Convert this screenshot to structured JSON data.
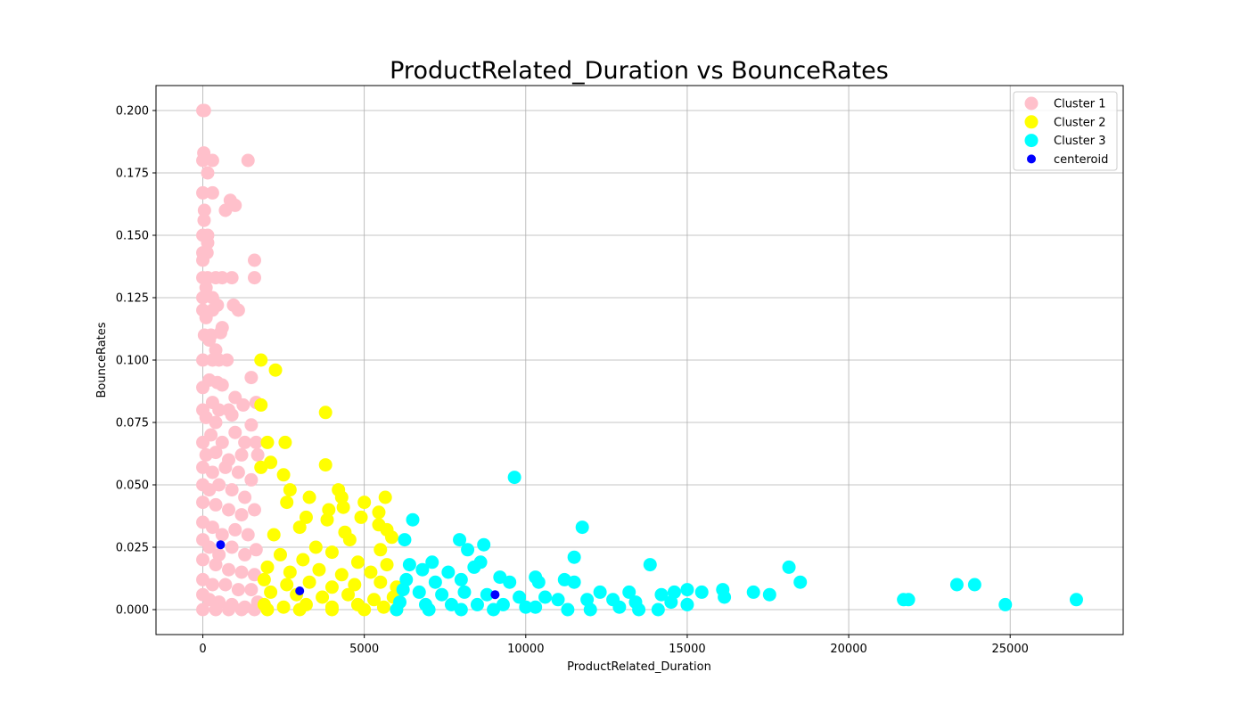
{
  "chart_data": {
    "type": "scatter",
    "title": "ProductRelated_Duration vs BounceRates",
    "xlabel": "ProductRelated_Duration",
    "ylabel": "BounceRates",
    "xlim": [
      -1450,
      28500
    ],
    "ylim": [
      -0.01,
      0.21
    ],
    "xticks": [
      0,
      5000,
      10000,
      15000,
      20000,
      25000
    ],
    "xtick_labels": [
      "0",
      "5000",
      "10000",
      "15000",
      "20000",
      "25000"
    ],
    "yticks": [
      0.0,
      0.025,
      0.05,
      0.075,
      0.1,
      0.125,
      0.15,
      0.175,
      0.2
    ],
    "ytick_labels": [
      "0.000",
      "0.025",
      "0.050",
      "0.075",
      "0.100",
      "0.125",
      "0.150",
      "0.175",
      "0.200"
    ],
    "grid": true,
    "legend_position": "top-right",
    "series": [
      {
        "name": "Cluster 1",
        "color": "#ffc0cb",
        "marker_size": "large",
        "points": [
          [
            0,
            0.2
          ],
          [
            50,
            0.2
          ],
          [
            30,
            0.183
          ],
          [
            0,
            0.18
          ],
          [
            300,
            0.18
          ],
          [
            1400,
            0.18
          ],
          [
            150,
            0.175
          ],
          [
            0,
            0.167
          ],
          [
            300,
            0.167
          ],
          [
            850,
            0.164
          ],
          [
            50,
            0.16
          ],
          [
            700,
            0.16
          ],
          [
            1000,
            0.162
          ],
          [
            40,
            0.156
          ],
          [
            0,
            0.15
          ],
          [
            150,
            0.15
          ],
          [
            150,
            0.147
          ],
          [
            0,
            0.143
          ],
          [
            130,
            0.143
          ],
          [
            0,
            0.14
          ],
          [
            1600,
            0.14
          ],
          [
            0,
            0.133
          ],
          [
            150,
            0.133
          ],
          [
            400,
            0.133
          ],
          [
            600,
            0.133
          ],
          [
            900,
            0.133
          ],
          [
            1600,
            0.133
          ],
          [
            100,
            0.129
          ],
          [
            300,
            0.125
          ],
          [
            0,
            0.125
          ],
          [
            950,
            0.122
          ],
          [
            450,
            0.122
          ],
          [
            1100,
            0.12
          ],
          [
            0,
            0.12
          ],
          [
            300,
            0.12
          ],
          [
            100,
            0.117
          ],
          [
            50,
            0.11
          ],
          [
            250,
            0.11
          ],
          [
            600,
            0.113
          ],
          [
            550,
            0.111
          ],
          [
            200,
            0.108
          ],
          [
            0,
            0.1
          ],
          [
            300,
            0.1
          ],
          [
            500,
            0.1
          ],
          [
            750,
            0.1
          ],
          [
            400,
            0.104
          ],
          [
            1500,
            0.093
          ],
          [
            0,
            0.089
          ],
          [
            200,
            0.092
          ],
          [
            450,
            0.091
          ],
          [
            600,
            0.09
          ],
          [
            1650,
            0.083
          ],
          [
            1000,
            0.085
          ],
          [
            0,
            0.08
          ],
          [
            300,
            0.083
          ],
          [
            500,
            0.08
          ],
          [
            800,
            0.08
          ],
          [
            1250,
            0.082
          ],
          [
            100,
            0.077
          ],
          [
            400,
            0.075
          ],
          [
            900,
            0.078
          ],
          [
            1500,
            0.074
          ],
          [
            0,
            0.067
          ],
          [
            250,
            0.07
          ],
          [
            600,
            0.067
          ],
          [
            1000,
            0.071
          ],
          [
            1300,
            0.067
          ],
          [
            1650,
            0.067
          ],
          [
            100,
            0.062
          ],
          [
            400,
            0.063
          ],
          [
            800,
            0.06
          ],
          [
            1200,
            0.062
          ],
          [
            1700,
            0.062
          ],
          [
            0,
            0.057
          ],
          [
            300,
            0.055
          ],
          [
            700,
            0.057
          ],
          [
            1100,
            0.055
          ],
          [
            1500,
            0.052
          ],
          [
            0,
            0.05
          ],
          [
            200,
            0.048
          ],
          [
            500,
            0.05
          ],
          [
            900,
            0.048
          ],
          [
            1300,
            0.045
          ],
          [
            0,
            0.043
          ],
          [
            400,
            0.042
          ],
          [
            800,
            0.04
          ],
          [
            1200,
            0.038
          ],
          [
            1600,
            0.04
          ],
          [
            0,
            0.035
          ],
          [
            300,
            0.033
          ],
          [
            600,
            0.03
          ],
          [
            1000,
            0.032
          ],
          [
            1400,
            0.03
          ],
          [
            0,
            0.028
          ],
          [
            200,
            0.025
          ],
          [
            500,
            0.022
          ],
          [
            900,
            0.025
          ],
          [
            1300,
            0.022
          ],
          [
            1650,
            0.024
          ],
          [
            0,
            0.02
          ],
          [
            400,
            0.018
          ],
          [
            800,
            0.016
          ],
          [
            1200,
            0.015
          ],
          [
            1600,
            0.014
          ],
          [
            0,
            0.012
          ],
          [
            300,
            0.01
          ],
          [
            700,
            0.01
          ],
          [
            1100,
            0.008
          ],
          [
            1500,
            0.008
          ],
          [
            0,
            0.006
          ],
          [
            200,
            0.004
          ],
          [
            500,
            0.003
          ],
          [
            900,
            0.002
          ],
          [
            1300,
            0.001
          ],
          [
            1700,
            0.003
          ],
          [
            0,
            0
          ],
          [
            400,
            0
          ],
          [
            800,
            0
          ],
          [
            1200,
            0
          ],
          [
            1600,
            0
          ]
        ]
      },
      {
        "name": "Cluster 2",
        "color": "#ffff00",
        "marker_size": "large",
        "points": [
          [
            1800,
            0.1
          ],
          [
            2250,
            0.096
          ],
          [
            1800,
            0.082
          ],
          [
            3800,
            0.079
          ],
          [
            2000,
            0.067
          ],
          [
            2550,
            0.067
          ],
          [
            2100,
            0.059
          ],
          [
            3800,
            0.058
          ],
          [
            2500,
            0.054
          ],
          [
            1800,
            0.057
          ],
          [
            4200,
            0.048
          ],
          [
            2700,
            0.048
          ],
          [
            3300,
            0.045
          ],
          [
            5650,
            0.045
          ],
          [
            4300,
            0.045
          ],
          [
            5000,
            0.043
          ],
          [
            4350,
            0.041
          ],
          [
            2600,
            0.043
          ],
          [
            3900,
            0.04
          ],
          [
            5450,
            0.039
          ],
          [
            4900,
            0.037
          ],
          [
            3200,
            0.037
          ],
          [
            3850,
            0.036
          ],
          [
            5450,
            0.034
          ],
          [
            5700,
            0.032
          ],
          [
            4400,
            0.031
          ],
          [
            5850,
            0.029
          ],
          [
            4550,
            0.028
          ],
          [
            3000,
            0.033
          ],
          [
            2200,
            0.03
          ],
          [
            3500,
            0.025
          ],
          [
            4000,
            0.023
          ],
          [
            5500,
            0.024
          ],
          [
            2400,
            0.022
          ],
          [
            3100,
            0.02
          ],
          [
            4800,
            0.019
          ],
          [
            5700,
            0.018
          ],
          [
            2000,
            0.017
          ],
          [
            2700,
            0.015
          ],
          [
            3600,
            0.016
          ],
          [
            4300,
            0.014
          ],
          [
            5200,
            0.015
          ],
          [
            1900,
            0.012
          ],
          [
            2600,
            0.01
          ],
          [
            3300,
            0.011
          ],
          [
            4000,
            0.009
          ],
          [
            4700,
            0.01
          ],
          [
            5500,
            0.011
          ],
          [
            6000,
            0.009
          ],
          [
            2100,
            0.007
          ],
          [
            2900,
            0.006
          ],
          [
            3700,
            0.005
          ],
          [
            4500,
            0.006
          ],
          [
            5300,
            0.004
          ],
          [
            5900,
            0.005
          ],
          [
            1900,
            0.002
          ],
          [
            2500,
            0.001
          ],
          [
            3200,
            0.002
          ],
          [
            4000,
            0.001
          ],
          [
            4800,
            0.002
          ],
          [
            5600,
            0.001
          ],
          [
            2000,
            0
          ],
          [
            3000,
            0
          ],
          [
            4000,
            0
          ],
          [
            5000,
            0
          ],
          [
            6000,
            0
          ]
        ]
      },
      {
        "name": "Cluster 3",
        "color": "#00ffff",
        "marker_size": "large",
        "points": [
          [
            9650,
            0.053
          ],
          [
            6500,
            0.036
          ],
          [
            11750,
            0.033
          ],
          [
            6250,
            0.028
          ],
          [
            7950,
            0.028
          ],
          [
            8700,
            0.026
          ],
          [
            8200,
            0.024
          ],
          [
            11500,
            0.021
          ],
          [
            6400,
            0.018
          ],
          [
            7100,
            0.019
          ],
          [
            8600,
            0.019
          ],
          [
            13850,
            0.018
          ],
          [
            18150,
            0.017
          ],
          [
            6800,
            0.016
          ],
          [
            7600,
            0.015
          ],
          [
            8400,
            0.017
          ],
          [
            9200,
            0.013
          ],
          [
            10300,
            0.013
          ],
          [
            11200,
            0.012
          ],
          [
            18500,
            0.011
          ],
          [
            6300,
            0.012
          ],
          [
            7200,
            0.011
          ],
          [
            8000,
            0.012
          ],
          [
            9500,
            0.011
          ],
          [
            10400,
            0.011
          ],
          [
            11500,
            0.011
          ],
          [
            12300,
            0.007
          ],
          [
            13200,
            0.007
          ],
          [
            14200,
            0.006
          ],
          [
            14600,
            0.007
          ],
          [
            15000,
            0.008
          ],
          [
            15450,
            0.007
          ],
          [
            16100,
            0.008
          ],
          [
            16150,
            0.005
          ],
          [
            17050,
            0.007
          ],
          [
            17550,
            0.006
          ],
          [
            23350,
            0.01
          ],
          [
            23900,
            0.01
          ],
          [
            21700,
            0.004
          ],
          [
            21850,
            0.004
          ],
          [
            24850,
            0.002
          ],
          [
            27050,
            0.004
          ],
          [
            6200,
            0.008
          ],
          [
            6700,
            0.007
          ],
          [
            7400,
            0.006
          ],
          [
            8100,
            0.007
          ],
          [
            8800,
            0.006
          ],
          [
            9800,
            0.005
          ],
          [
            10600,
            0.005
          ],
          [
            11000,
            0.004
          ],
          [
            11900,
            0.004
          ],
          [
            12700,
            0.004
          ],
          [
            13400,
            0.003
          ],
          [
            14500,
            0.003
          ],
          [
            6100,
            0.003
          ],
          [
            6900,
            0.002
          ],
          [
            7700,
            0.002
          ],
          [
            8500,
            0.002
          ],
          [
            9300,
            0.002
          ],
          [
            10300,
            0.001
          ],
          [
            11300,
            0
          ],
          [
            12000,
            0
          ],
          [
            12900,
            0.001
          ],
          [
            13500,
            0
          ],
          [
            14100,
            0
          ],
          [
            15000,
            0.002
          ],
          [
            6000,
            0
          ],
          [
            7000,
            0
          ],
          [
            8000,
            0
          ],
          [
            9000,
            0
          ],
          [
            10000,
            0.001
          ]
        ]
      },
      {
        "name": "centeroid",
        "color": "#0000ff",
        "marker_size": "small",
        "points": [
          [
            550,
            0.026
          ],
          [
            3000,
            0.0075
          ],
          [
            9050,
            0.006
          ]
        ]
      }
    ]
  }
}
